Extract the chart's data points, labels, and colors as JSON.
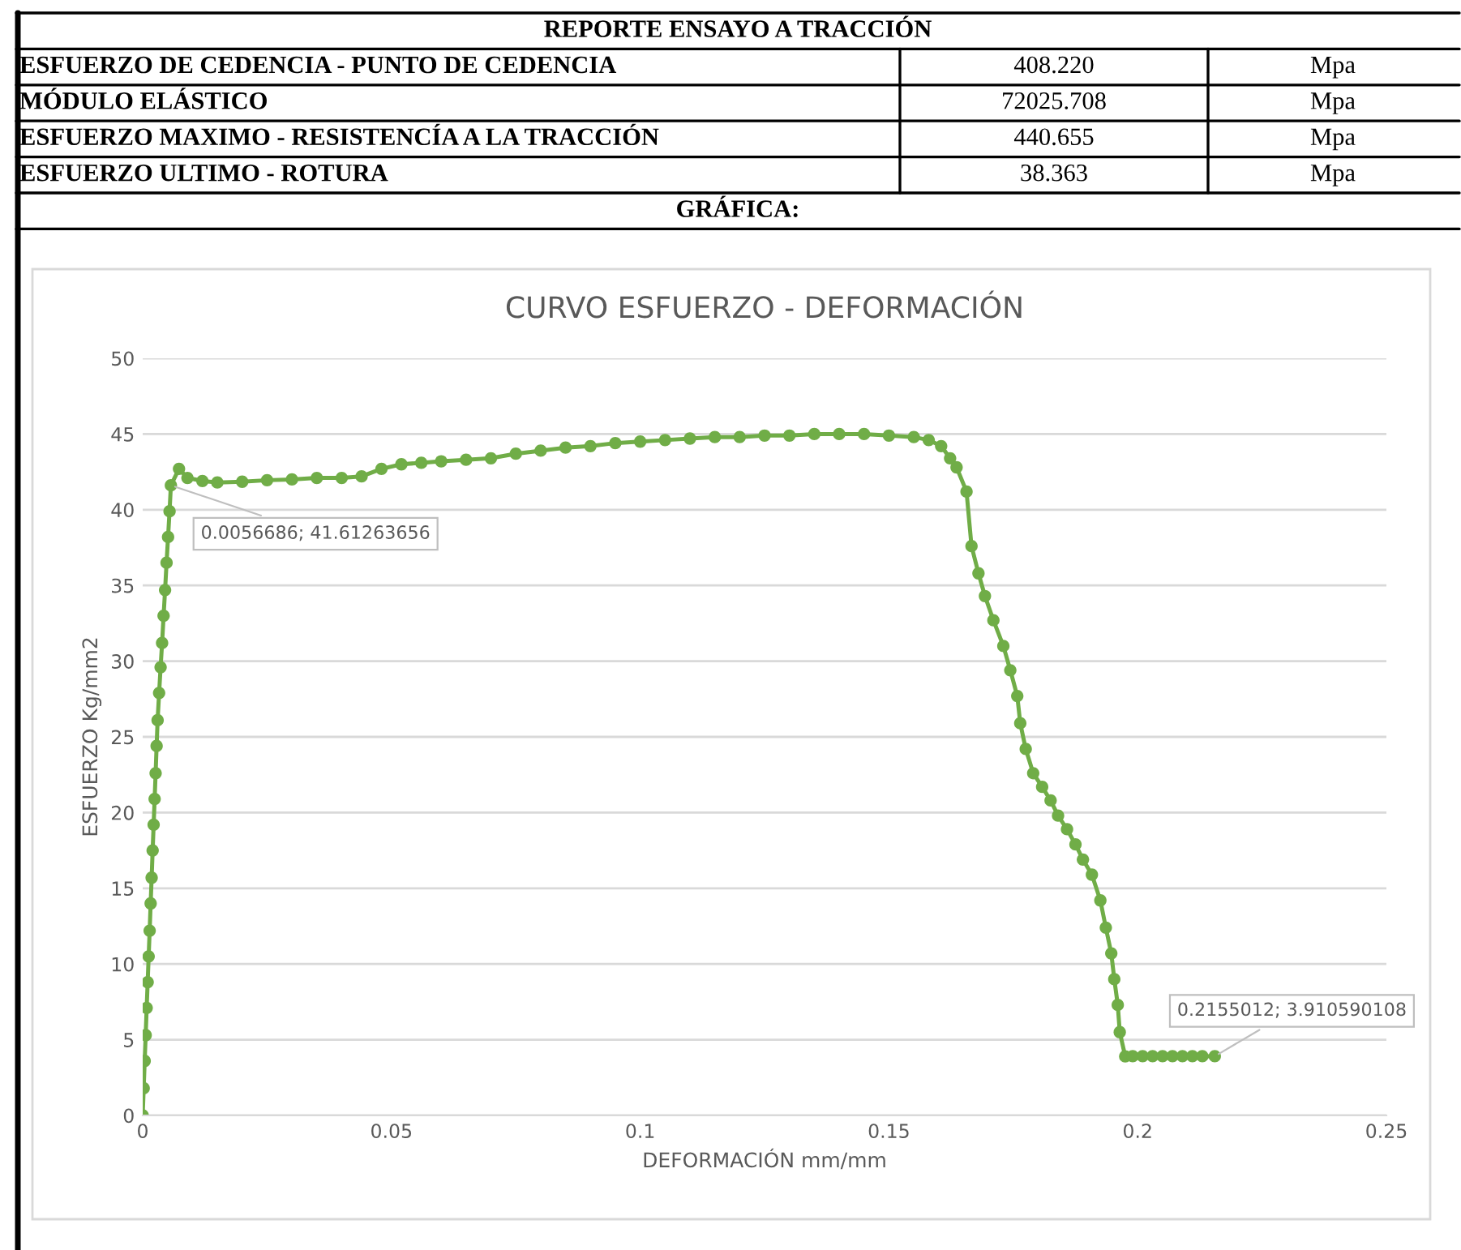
{
  "chart_data": {
    "type": "line",
    "title": "CURVO ESFUERZO - DEFORMACIÓN",
    "xlabel": "DEFORMACIÓN mm/mm",
    "ylabel": "ESFUERZO Kg/mm2",
    "annotations": [
      "REPORTE ENSAYO A TRACCIÓN",
      "ESFUERZO DE CEDENCIA - PUNTO DE CEDENCIA",
      "408.220",
      "Mpa",
      "MÓDULO ELÁSTICO",
      "72025.708",
      "Mpa",
      "ESFUERZO MAXIMO - RESISTENCÍA A LA TRACCIÓN",
      "440.655",
      "Mpa",
      "ESFUERZO ULTIMO - ROTURA",
      "38.363",
      "Mpa",
      "GRÁFICA:",
      {
        "text": "0.0056686; 41.61263656",
        "x": 0.0056686,
        "y": 41.61263656
      },
      {
        "text": "0.2155012; 3.910590108",
        "x": 0.2155012,
        "y": 3.910590108
      }
    ],
    "series": [
      {
        "color": "#70ad47",
        "x": [
          0,
          0.0002,
          0.0004,
          0.0006,
          0.0008,
          0.001,
          0.0012,
          0.0014,
          0.0016,
          0.0018,
          0.002,
          0.0022,
          0.0024,
          0.0026,
          0.0028,
          0.003,
          0.0033,
          0.0036,
          0.0039,
          0.0042,
          0.0045,
          0.0048,
          0.0051,
          0.0054,
          0.0056686,
          0.0073,
          0.009,
          0.012,
          0.015,
          0.02,
          0.025,
          0.03,
          0.035,
          0.04,
          0.044,
          0.048,
          0.052,
          0.056,
          0.06,
          0.065,
          0.07,
          0.075,
          0.08,
          0.085,
          0.09,
          0.095,
          0.1,
          0.105,
          0.11,
          0.115,
          0.12,
          0.125,
          0.13,
          0.135,
          0.14,
          0.145,
          0.15,
          0.155,
          0.158,
          0.1605,
          0.1623,
          0.1636,
          0.1656,
          0.1666,
          0.168,
          0.1693,
          0.171,
          0.173,
          0.1744,
          0.1758,
          0.1764,
          0.1775,
          0.179,
          0.1808,
          0.1825,
          0.184,
          0.1858,
          0.1875,
          0.189,
          0.1908,
          0.1925,
          0.1936,
          0.1947,
          0.1953,
          0.196,
          0.1964,
          0.1975,
          0.199,
          0.201,
          0.203,
          0.205,
          0.207,
          0.209,
          0.211,
          0.213,
          0.2155012
        ],
        "values": [
          0,
          1.8,
          3.6,
          5.3,
          7.1,
          8.8,
          10.5,
          12.2,
          14.0,
          15.7,
          17.5,
          19.2,
          20.9,
          22.6,
          24.4,
          26.1,
          27.9,
          29.6,
          31.2,
          33.0,
          34.7,
          36.5,
          38.2,
          39.9,
          41.61263656,
          42.7,
          42.1,
          41.9,
          41.8,
          41.85,
          41.95,
          42.0,
          42.1,
          42.1,
          42.2,
          42.7,
          43.0,
          43.1,
          43.2,
          43.3,
          43.4,
          43.7,
          43.9,
          44.1,
          44.2,
          44.4,
          44.5,
          44.6,
          44.7,
          44.8,
          44.8,
          44.9,
          44.9,
          45.0,
          45.0,
          45.0,
          44.9,
          44.8,
          44.6,
          44.2,
          43.4,
          42.8,
          41.2,
          37.6,
          35.8,
          34.3,
          32.7,
          31.0,
          29.4,
          27.7,
          25.9,
          24.2,
          22.6,
          21.7,
          20.8,
          19.8,
          18.9,
          17.9,
          16.9,
          15.9,
          14.2,
          12.4,
          10.7,
          9.0,
          7.3,
          5.5,
          3.9,
          3.91,
          3.91,
          3.91,
          3.91,
          3.91,
          3.91,
          3.91,
          3.91,
          3.910590108
        ]
      }
    ],
    "xlim": [
      0,
      0.25
    ],
    "xticks": [
      0,
      0.05,
      0.1,
      0.15,
      0.2,
      0.25
    ],
    "ylim": [
      0,
      50
    ],
    "yticks": [
      0,
      5,
      10,
      15,
      20,
      25,
      30,
      35,
      40,
      45,
      50
    ],
    "grid": "y",
    "marker": "circle",
    "line_style": "solid",
    "legend": false
  }
}
